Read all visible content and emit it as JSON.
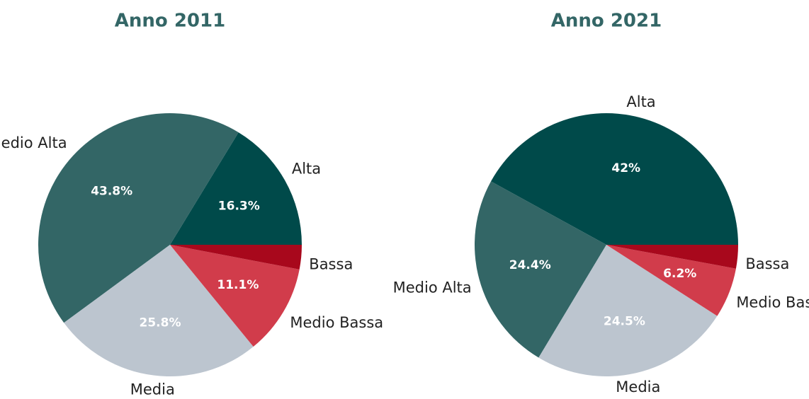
{
  "chart_data": [
    {
      "type": "pie",
      "title": "Anno 2011",
      "categories": [
        "Alta",
        "Medio Alta",
        "Media",
        "Medio Bassa",
        "Bassa"
      ],
      "values": [
        16.3,
        43.8,
        25.8,
        11.1,
        3.0
      ],
      "value_labels": [
        "16.3%",
        "43.8%",
        "25.8%",
        "11.1%",
        null
      ],
      "colors": [
        "#004a4a",
        "#336666",
        "#bcc5cf",
        "#d13c4b",
        "#a8081c"
      ]
    },
    {
      "type": "pie",
      "title": "Anno 2021",
      "categories": [
        "Alta",
        "Medio Alta",
        "Media",
        "Medio Bassa",
        "Bassa"
      ],
      "values": [
        42,
        24.4,
        24.5,
        6.2,
        2.9
      ],
      "value_labels": [
        "42%",
        "24.4%",
        "24.5%",
        "6.2%",
        null
      ],
      "colors": [
        "#004a4a",
        "#336666",
        "#bcc5cf",
        "#d13c4b",
        "#a8081c"
      ]
    }
  ]
}
